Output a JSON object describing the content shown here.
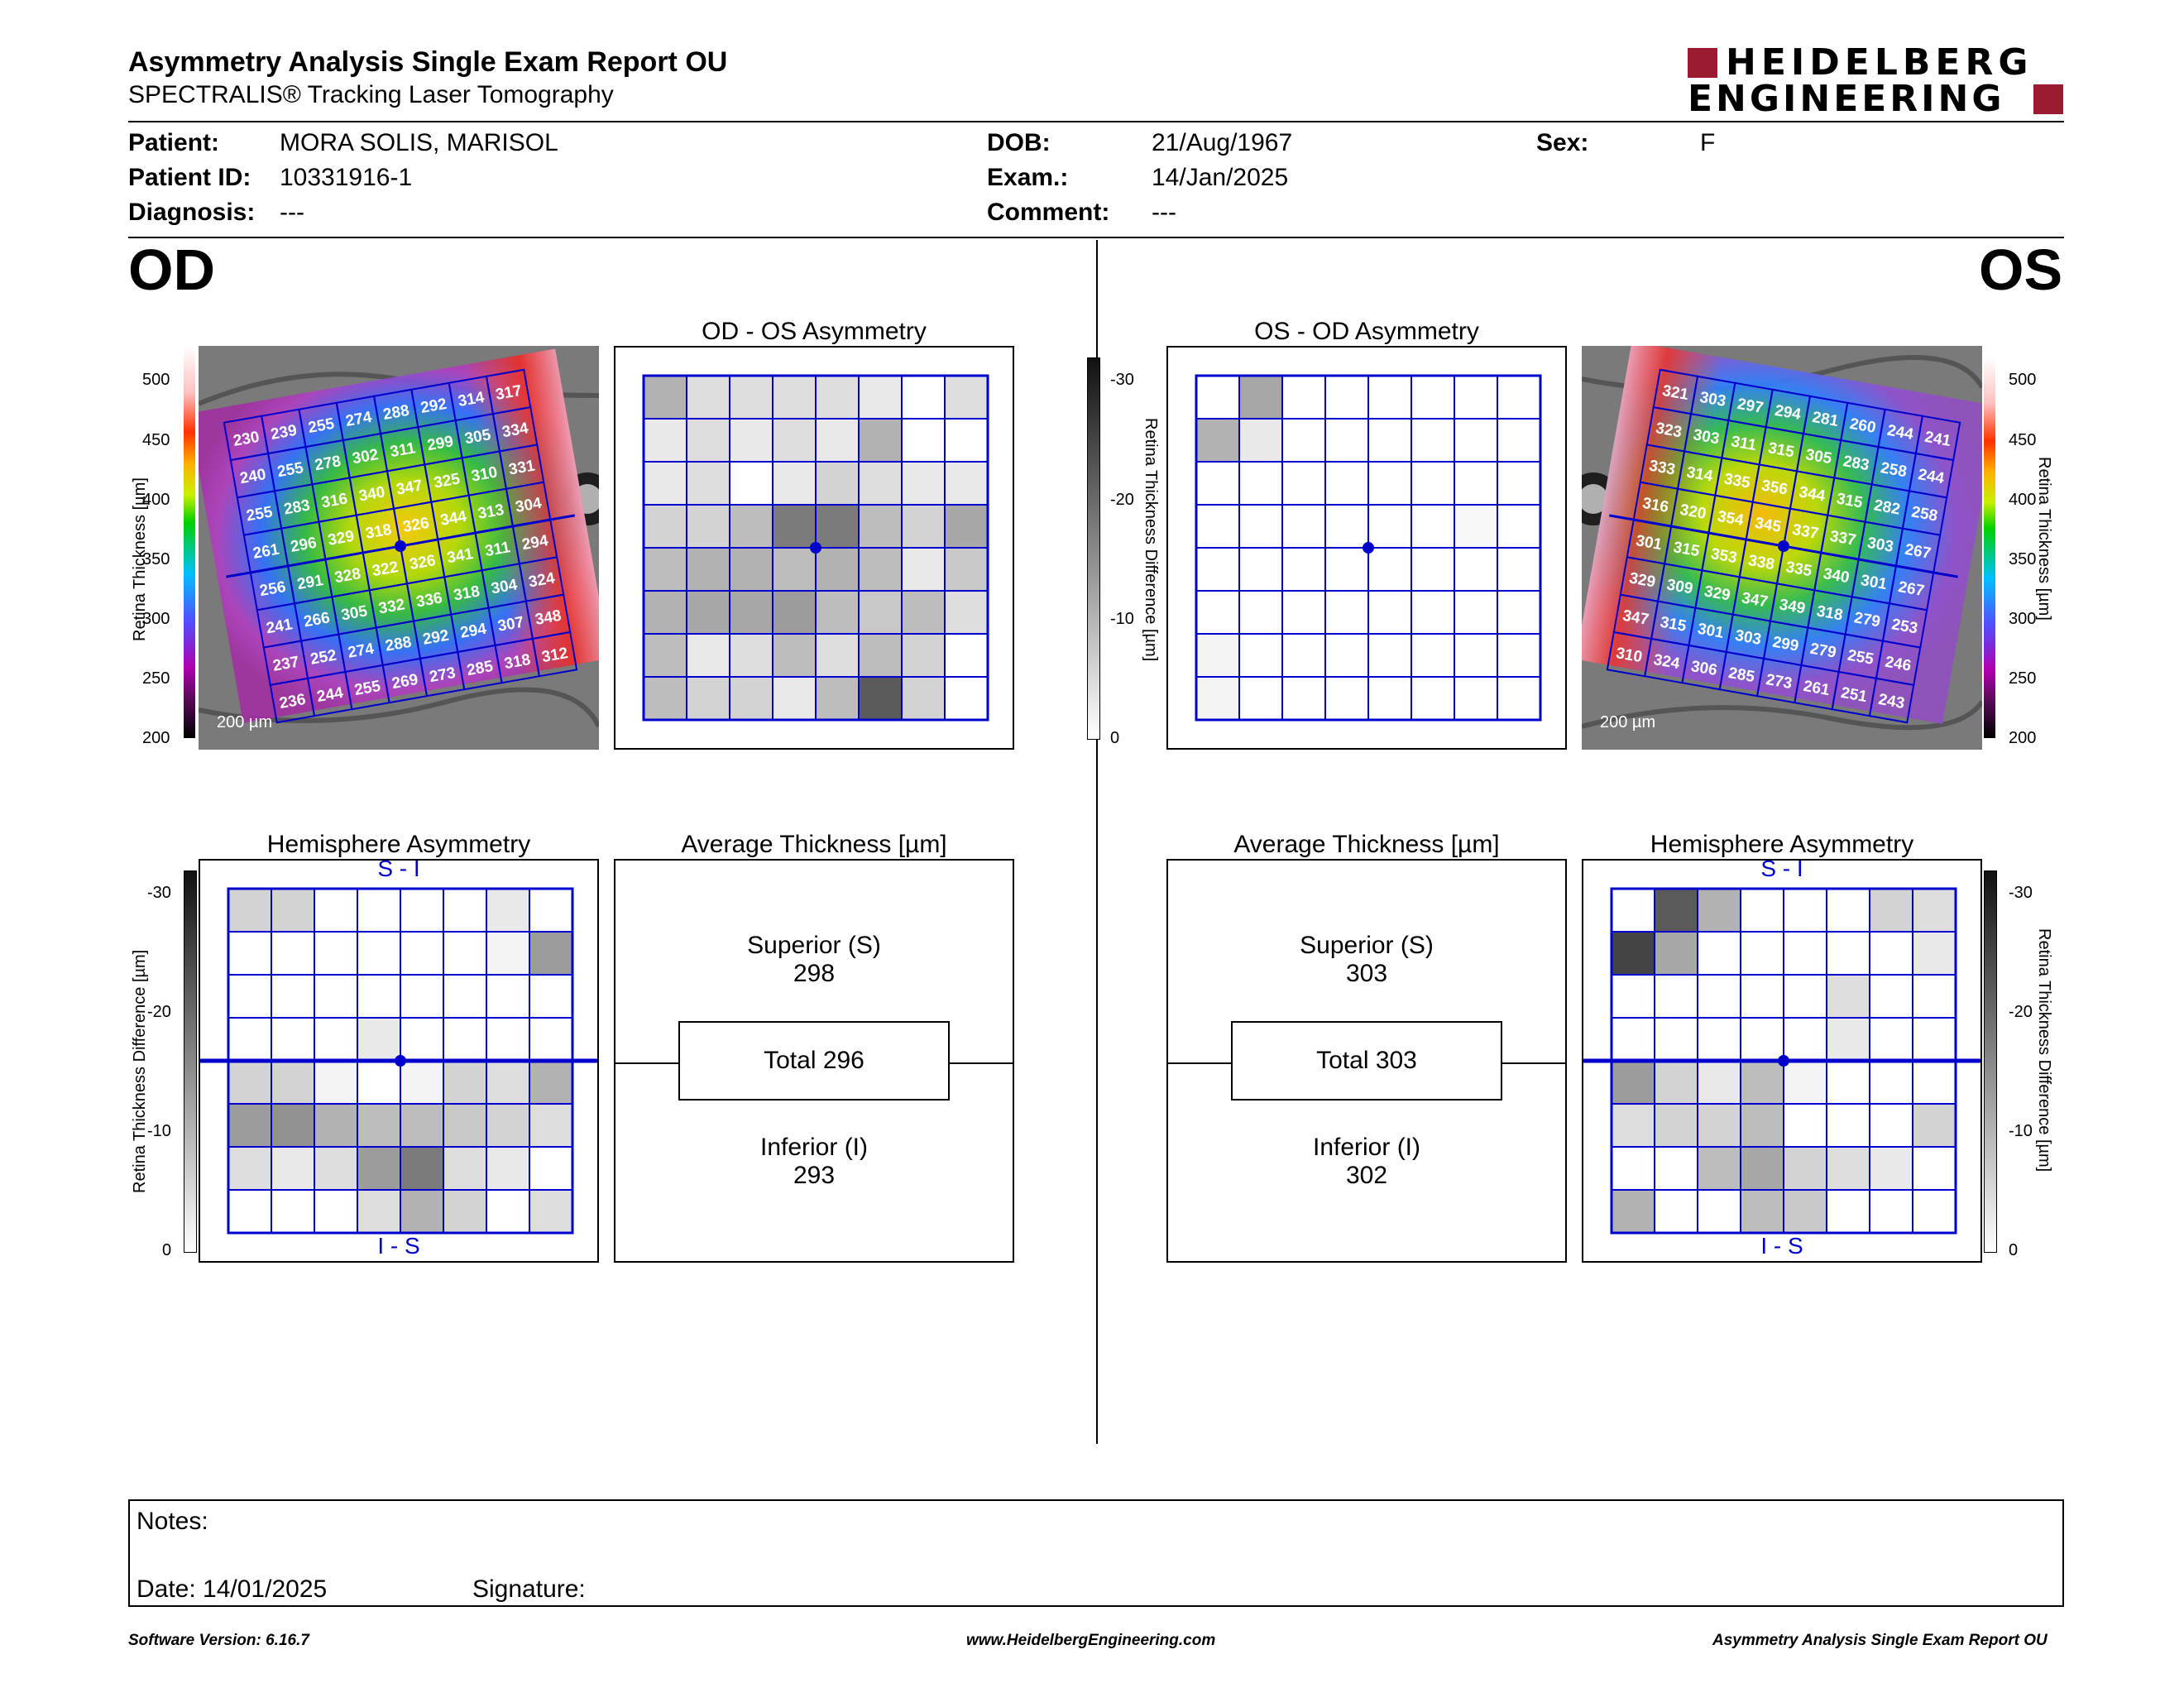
{
  "header": {
    "title": "Asymmetry Analysis Single Exam Report OU",
    "subtitle": "SPECTRALIS® Tracking Laser Tomography",
    "logo_line1": "HEIDELBERG",
    "logo_line2": "ENGINEERING",
    "brand_color": "#9b1b30"
  },
  "patient": {
    "patient_label": "Patient:",
    "patient_value": "MORA SOLIS, MARISOL",
    "id_label": "Patient ID:",
    "id_value": "10331916-1",
    "diagnosis_label": "Diagnosis:",
    "diagnosis_value": "---",
    "dob_label": "DOB:",
    "dob_value": "21/Aug/1967",
    "exam_label": "Exam.:",
    "exam_value": "14/Jan/2025",
    "comment_label": "Comment:",
    "comment_value": "---",
    "sex_label": "Sex:",
    "sex_value": "F"
  },
  "eyes": {
    "left": "OD",
    "right": "OS"
  },
  "scales": {
    "thickness_label": "Retina  Thickness [µm]",
    "thickness_ticks": [
      "500",
      "450",
      "400",
      "350",
      "300",
      "250",
      "200"
    ],
    "difference_label": "Retina Thickness Difference [µm]",
    "difference_ticks": [
      "-30",
      "-20",
      "-10",
      "0"
    ],
    "scale_bar": "200 µm"
  },
  "od": {
    "asym_title": "OD - OS Asymmetry",
    "hemi_title": "Hemisphere Asymmetry",
    "hemi_top": "S - I",
    "hemi_bottom": "I - S",
    "avg_title": "Average Thickness [µm]",
    "sup_label": "Superior (S)",
    "sup_value": "298",
    "total_label": "Total 296",
    "inf_label": "Inferior (I)",
    "inf_value": "293",
    "grid_values": [
      [
        230,
        239,
        255,
        274,
        288,
        292,
        314,
        317
      ],
      [
        240,
        255,
        278,
        302,
        311,
        299,
        305,
        334
      ],
      [
        255,
        283,
        316,
        340,
        347,
        325,
        310,
        331
      ],
      [
        261,
        296,
        329,
        318,
        326,
        344,
        313,
        304
      ],
      [
        256,
        291,
        328,
        322,
        326,
        341,
        311,
        294
      ],
      [
        241,
        266,
        305,
        332,
        336,
        318,
        304,
        324
      ],
      [
        237,
        252,
        274,
        288,
        292,
        294,
        307,
        348
      ],
      [
        236,
        244,
        255,
        269,
        273,
        285,
        318,
        312
      ]
    ],
    "asym_shades": [
      [
        0.35,
        0.15,
        0.15,
        0.15,
        0.15,
        0.1,
        0,
        0.15
      ],
      [
        0.1,
        0.15,
        0.1,
        0.15,
        0.1,
        0.35,
        0,
        0
      ],
      [
        0.1,
        0.15,
        0,
        0.1,
        0.2,
        0.15,
        0.1,
        0.1
      ],
      [
        0.2,
        0.2,
        0.3,
        0.6,
        0.6,
        0.3,
        0.2,
        0.4
      ],
      [
        0.3,
        0.35,
        0.35,
        0.3,
        0.35,
        0.3,
        0.1,
        0.25
      ],
      [
        0.35,
        0.4,
        0.4,
        0.45,
        0.3,
        0.25,
        0.3,
        0.15
      ],
      [
        0.3,
        0.1,
        0.15,
        0.3,
        0.15,
        0.3,
        0.2,
        0
      ],
      [
        0.3,
        0.2,
        0.2,
        0.1,
        0.3,
        0.75,
        0.2,
        0
      ]
    ],
    "hemi_shades": [
      [
        0.2,
        0.2,
        0,
        0,
        0,
        0,
        0.1,
        0
      ],
      [
        0,
        0,
        0,
        0,
        0,
        0,
        0.05,
        0.45
      ],
      [
        0,
        0,
        0,
        0,
        0,
        0,
        0,
        0
      ],
      [
        0,
        0,
        0,
        0.1,
        0,
        0,
        0,
        0
      ],
      [
        0.2,
        0.2,
        0.05,
        0,
        0.05,
        0.2,
        0.15,
        0.35
      ],
      [
        0.45,
        0.5,
        0.35,
        0.3,
        0.3,
        0.25,
        0.2,
        0.15
      ],
      [
        0.15,
        0.1,
        0.15,
        0.45,
        0.6,
        0.15,
        0.1,
        0
      ],
      [
        0,
        0,
        0,
        0.15,
        0.35,
        0.2,
        0,
        0.15
      ]
    ]
  },
  "os": {
    "asym_title": "OS - OD Asymmetry",
    "hemi_title": "Hemisphere Asymmetry",
    "hemi_top": "S - I",
    "hemi_bottom": "I - S",
    "avg_title": "Average Thickness [µm]",
    "sup_label": "Superior (S)",
    "sup_value": "303",
    "total_label": "Total 303",
    "inf_label": "Inferior (I)",
    "inf_value": "302",
    "grid_values": [
      [
        321,
        303,
        297,
        294,
        281,
        260,
        244,
        241
      ],
      [
        323,
        303,
        311,
        315,
        305,
        283,
        258,
        244
      ],
      [
        333,
        314,
        335,
        356,
        344,
        315,
        282,
        258
      ],
      [
        316,
        320,
        354,
        345,
        337,
        337,
        303,
        267
      ],
      [
        301,
        315,
        353,
        338,
        335,
        340,
        301,
        267
      ],
      [
        329,
        309,
        329,
        347,
        349,
        318,
        279,
        253
      ],
      [
        347,
        315,
        301,
        303,
        299,
        279,
        255,
        246
      ],
      [
        310,
        324,
        306,
        285,
        273,
        261,
        251,
        243
      ]
    ],
    "asym_shades": [
      [
        0,
        0.4,
        0,
        0,
        0,
        0,
        0,
        0
      ],
      [
        0.35,
        0.1,
        0,
        0,
        0,
        0,
        0,
        0
      ],
      [
        0,
        0,
        0,
        0,
        0,
        0,
        0,
        0
      ],
      [
        0,
        0,
        0,
        0,
        0,
        0,
        0.03,
        0
      ],
      [
        0,
        0,
        0,
        0,
        0,
        0,
        0,
        0
      ],
      [
        0,
        0,
        0,
        0,
        0,
        0,
        0,
        0
      ],
      [
        0.05,
        0,
        0,
        0,
        0,
        0,
        0,
        0
      ],
      [
        0.05,
        0,
        0,
        0,
        0,
        0,
        0,
        0
      ]
    ],
    "hemi_shades": [
      [
        0,
        0.75,
        0.35,
        0,
        0,
        0,
        0.2,
        0.15
      ],
      [
        0.85,
        0.4,
        0,
        0,
        0,
        0,
        0,
        0.1
      ],
      [
        0,
        0,
        0,
        0,
        0,
        0.15,
        0,
        0
      ],
      [
        0,
        0,
        0,
        0,
        0,
        0.1,
        0,
        0
      ],
      [
        0.45,
        0.2,
        0.1,
        0.3,
        0.05,
        0,
        0,
        0
      ],
      [
        0.15,
        0.2,
        0.2,
        0.3,
        0,
        0,
        0,
        0.2
      ],
      [
        0,
        0,
        0.3,
        0.4,
        0.2,
        0.15,
        0.1,
        0
      ],
      [
        0.35,
        0,
        0,
        0.3,
        0.25,
        0,
        0,
        0
      ]
    ]
  },
  "notes": {
    "notes_label": "Notes:",
    "date_label": "Date: 14/01/2025",
    "signature_label": "Signature:"
  },
  "footer": {
    "version": "Software Version: 6.16.7",
    "website": "www.HeidelbergEngineering.com",
    "report_name": "Asymmetry Analysis Single Exam Report OU"
  }
}
